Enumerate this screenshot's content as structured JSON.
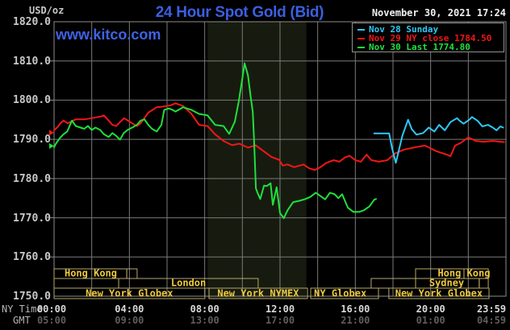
{
  "header": {
    "unit_label": "USD/oz",
    "title": "24 Hour Spot Gold (Bid)",
    "datetime": "November 30, 2021 17:24",
    "watermark": "www.kitco.com"
  },
  "legend": {
    "items": [
      {
        "label": "Nov 28 Sunday",
        "color": "#2FC8F8"
      },
      {
        "label": "Nov 29 NY close 1784.50",
        "color": "#F21717"
      },
      {
        "label": "Nov 30 Last 1774.80",
        "color": "#1FE03C"
      }
    ]
  },
  "axes": {
    "y_ticks": [
      {
        "label": "1820.0",
        "value": 1820
      },
      {
        "label": "1810.0",
        "value": 1810
      },
      {
        "label": "1800.0",
        "value": 1800
      },
      {
        "label": "1790.0",
        "value": 1790
      },
      {
        "label": "1780.0",
        "value": 1780
      },
      {
        "label": "1770.0",
        "value": 1770
      },
      {
        "label": "1760.0",
        "value": 1760
      },
      {
        "label": "1750.0",
        "value": 1750
      }
    ],
    "x_row1_name": "NY Time",
    "x_row2_name": "GMT",
    "x_row1_ticks": [
      {
        "label": "00:00",
        "hour": 0
      },
      {
        "label": "04:00",
        "hour": 4
      },
      {
        "label": "08:00",
        "hour": 8
      },
      {
        "label": "12:00",
        "hour": 12
      },
      {
        "label": "16:00",
        "hour": 16
      },
      {
        "label": "20:00",
        "hour": 20
      },
      {
        "label": "23:59",
        "hour": 24
      }
    ],
    "x_row2_ticks": [
      {
        "label": "05:00",
        "hour": 0
      },
      {
        "label": "09:00",
        "hour": 4
      },
      {
        "label": "13:00",
        "hour": 8
      },
      {
        "label": "17:00",
        "hour": 12
      },
      {
        "label": "21:00",
        "hour": 16
      },
      {
        "label": "01:00",
        "hour": 20
      },
      {
        "label": "04:59",
        "hour": 24
      }
    ]
  },
  "sessions": {
    "rows": [
      {
        "boxes": [
          {
            "start": 0,
            "end": 3.86
          },
          {
            "start": 3.86,
            "end": 4.41
          },
          {
            "start": 19.2,
            "end": 21.77
          },
          {
            "start": 21.77,
            "end": 23.06
          }
        ],
        "labels": [
          {
            "text": "Hong Kong",
            "center": 1.95
          },
          {
            "text": "Hong Kong",
            "center": 21.77
          }
        ]
      },
      {
        "boxes": [
          {
            "start": 0,
            "end": 3.43
          },
          {
            "start": 3.43,
            "end": 10.84
          },
          {
            "start": 16.84,
            "end": 19.2
          },
          {
            "start": 19.2,
            "end": 22.58
          },
          {
            "start": 22.58,
            "end": 23.06
          }
        ],
        "labels": [
          {
            "text": "London",
            "center": 7.14
          },
          {
            "text": "Sydney",
            "center": 20.85
          }
        ]
      },
      {
        "boxes": [
          {
            "start": 0,
            "end": 8.01
          },
          {
            "start": 8.23,
            "end": 13.46
          },
          {
            "start": 13.63,
            "end": 17.23
          },
          {
            "start": 17.78,
            "end": 23.1
          }
        ],
        "labels": [
          {
            "text": "New York Globex",
            "center": 4.0
          },
          {
            "text": "New York NYMEX",
            "center": 10.84
          },
          {
            "text": "NY Globex",
            "center": 15.2
          },
          {
            "text": "New York Globex",
            "center": 20.44
          }
        ]
      }
    ]
  },
  "colors": {
    "background": "#000000",
    "title": "#3B5FE0",
    "watermark": "#3E63E6",
    "datetime": "#F0F0F0",
    "grid": "#7A7A7A",
    "border": "#8C8C8C",
    "band": "#171B0F",
    "session_border": "#B3A769",
    "session_text": "#EDC93F",
    "legend_border": "#909090"
  },
  "chart_data": {
    "type": "line",
    "title": "24 Hour Spot Gold (Bid)",
    "xlabel": "NY Time / GMT",
    "ylabel": "USD/oz",
    "xlim_hours": [
      0,
      24
    ],
    "ylim": [
      1750,
      1820
    ],
    "grid": "on",
    "grid_x_step_hours": 2,
    "grid_y_step": 10,
    "legend_position": "top-right",
    "shaded_band_hours": [
      8.15,
      13.4
    ],
    "start_markers": [
      {
        "series": "Nov 29",
        "price": 1791.7,
        "color": "#F21717"
      },
      {
        "series": "Nov 30",
        "price": 1788.3,
        "color": "#1FE03C"
      }
    ],
    "series": [
      {
        "name": "Nov 29 NY close 1784.50",
        "color": "#F21717",
        "points": [
          [
            0,
            1792.3
          ],
          [
            0.2,
            1793.2
          ],
          [
            0.35,
            1794.2
          ],
          [
            0.5,
            1794.8
          ],
          [
            0.72,
            1794.1
          ],
          [
            1.15,
            1795.1
          ],
          [
            1.6,
            1795.1
          ],
          [
            2.0,
            1795.4
          ],
          [
            2.45,
            1795.8
          ],
          [
            2.65,
            1796.1
          ],
          [
            2.9,
            1794.8
          ],
          [
            3.1,
            1793.7
          ],
          [
            3.3,
            1793.4
          ],
          [
            3.5,
            1794.4
          ],
          [
            3.72,
            1795.4
          ],
          [
            4.15,
            1794.1
          ],
          [
            4.4,
            1793.4
          ],
          [
            4.6,
            1794.1
          ],
          [
            5.0,
            1796.8
          ],
          [
            5.45,
            1798.2
          ],
          [
            5.85,
            1798.4
          ],
          [
            6.2,
            1798.7
          ],
          [
            6.45,
            1799.2
          ],
          [
            6.85,
            1798.5
          ],
          [
            7.3,
            1796.5
          ],
          [
            7.7,
            1793.7
          ],
          [
            8.15,
            1793.4
          ],
          [
            8.55,
            1791.3
          ],
          [
            9.0,
            1789.6
          ],
          [
            9.45,
            1788.5
          ],
          [
            9.85,
            1788.9
          ],
          [
            10.3,
            1787.9
          ],
          [
            10.7,
            1788.5
          ],
          [
            11.15,
            1786.9
          ],
          [
            11.55,
            1785.5
          ],
          [
            11.95,
            1784.8
          ],
          [
            12.15,
            1783.3
          ],
          [
            12.4,
            1783.6
          ],
          [
            12.75,
            1782.9
          ],
          [
            13.25,
            1783.6
          ],
          [
            13.55,
            1782.6
          ],
          [
            13.85,
            1782.2
          ],
          [
            14.15,
            1782.9
          ],
          [
            14.45,
            1784.0
          ],
          [
            14.85,
            1784.7
          ],
          [
            15.15,
            1784.3
          ],
          [
            15.45,
            1785.4
          ],
          [
            15.7,
            1785.8
          ],
          [
            16.0,
            1784.7
          ],
          [
            16.3,
            1784.3
          ],
          [
            16.6,
            1786.1
          ],
          [
            16.85,
            1784.7
          ],
          [
            17.25,
            1784.3
          ],
          [
            17.7,
            1784.7
          ],
          [
            18.1,
            1786.4
          ],
          [
            18.6,
            1787.4
          ],
          [
            19.2,
            1788.0
          ],
          [
            19.7,
            1788.4
          ],
          [
            20.3,
            1787.0
          ],
          [
            20.85,
            1786.1
          ],
          [
            21.05,
            1785.7
          ],
          [
            21.3,
            1788.4
          ],
          [
            21.6,
            1789.1
          ],
          [
            22.0,
            1790.5
          ],
          [
            22.4,
            1789.6
          ],
          [
            22.8,
            1789.4
          ],
          [
            23.3,
            1789.6
          ],
          [
            23.9,
            1789.3
          ]
        ]
      },
      {
        "name": "Nov 30 Last 1774.80",
        "color": "#1FE03C",
        "points": [
          [
            0,
            1788.0
          ],
          [
            0.1,
            1788.9
          ],
          [
            0.3,
            1790.3
          ],
          [
            0.5,
            1791.3
          ],
          [
            0.7,
            1792.0
          ],
          [
            0.95,
            1794.8
          ],
          [
            1.15,
            1793.4
          ],
          [
            1.4,
            1793.0
          ],
          [
            1.6,
            1792.7
          ],
          [
            1.8,
            1793.4
          ],
          [
            2.0,
            1792.4
          ],
          [
            2.2,
            1793.0
          ],
          [
            2.45,
            1792.4
          ],
          [
            2.65,
            1791.3
          ],
          [
            2.9,
            1790.6
          ],
          [
            3.1,
            1791.6
          ],
          [
            3.3,
            1790.9
          ],
          [
            3.5,
            1789.9
          ],
          [
            3.7,
            1791.6
          ],
          [
            3.9,
            1792.4
          ],
          [
            4.15,
            1793.0
          ],
          [
            4.4,
            1793.7
          ],
          [
            4.6,
            1794.8
          ],
          [
            4.8,
            1795.1
          ],
          [
            5.0,
            1793.7
          ],
          [
            5.2,
            1792.7
          ],
          [
            5.45,
            1792.0
          ],
          [
            5.7,
            1793.7
          ],
          [
            5.85,
            1797.5
          ],
          [
            6.1,
            1797.9
          ],
          [
            6.3,
            1797.5
          ],
          [
            6.45,
            1797.1
          ],
          [
            6.85,
            1798.2
          ],
          [
            7.3,
            1797.5
          ],
          [
            7.7,
            1796.5
          ],
          [
            8.15,
            1796.1
          ],
          [
            8.55,
            1793.7
          ],
          [
            9.0,
            1793.4
          ],
          [
            9.3,
            1791.4
          ],
          [
            9.6,
            1794.5
          ],
          [
            9.8,
            1799.5
          ],
          [
            10.0,
            1805.5
          ],
          [
            10.12,
            1809.4
          ],
          [
            10.3,
            1806.3
          ],
          [
            10.45,
            1800.6
          ],
          [
            10.55,
            1797.1
          ],
          [
            10.62,
            1790.0
          ],
          [
            10.72,
            1777.5
          ],
          [
            10.82,
            1776.2
          ],
          [
            10.95,
            1774.8
          ],
          [
            11.15,
            1778.2
          ],
          [
            11.3,
            1778.1
          ],
          [
            11.5,
            1778.8
          ],
          [
            11.62,
            1773.3
          ],
          [
            11.82,
            1777.8
          ],
          [
            12.0,
            1771.2
          ],
          [
            12.2,
            1769.9
          ],
          [
            12.4,
            1771.9
          ],
          [
            12.7,
            1774.0
          ],
          [
            13.0,
            1774.3
          ],
          [
            13.3,
            1774.7
          ],
          [
            13.6,
            1775.3
          ],
          [
            13.9,
            1776.4
          ],
          [
            14.1,
            1775.7
          ],
          [
            14.4,
            1774.7
          ],
          [
            14.65,
            1776.4
          ],
          [
            14.9,
            1776.0
          ],
          [
            15.1,
            1775.0
          ],
          [
            15.3,
            1776.0
          ],
          [
            15.6,
            1772.6
          ],
          [
            15.9,
            1771.5
          ],
          [
            16.2,
            1771.5
          ],
          [
            16.45,
            1771.9
          ],
          [
            16.75,
            1772.9
          ],
          [
            17.0,
            1774.6
          ],
          [
            17.1,
            1774.8
          ]
        ]
      },
      {
        "name": "Nov 28 Sunday",
        "color": "#2FC8F8",
        "points": [
          [
            17.0,
            1791.5
          ],
          [
            17.8,
            1791.5
          ],
          [
            17.95,
            1787.8
          ],
          [
            18.15,
            1784.0
          ],
          [
            18.3,
            1787.0
          ],
          [
            18.5,
            1791.0
          ],
          [
            18.8,
            1795.0
          ],
          [
            19.0,
            1792.6
          ],
          [
            19.25,
            1791.2
          ],
          [
            19.6,
            1791.6
          ],
          [
            19.9,
            1793.0
          ],
          [
            20.2,
            1792.0
          ],
          [
            20.45,
            1793.7
          ],
          [
            20.75,
            1792.3
          ],
          [
            21.05,
            1794.4
          ],
          [
            21.4,
            1795.4
          ],
          [
            21.55,
            1794.7
          ],
          [
            21.75,
            1794.0
          ],
          [
            22.05,
            1795.0
          ],
          [
            22.2,
            1795.7
          ],
          [
            22.5,
            1794.7
          ],
          [
            22.75,
            1793.3
          ],
          [
            23.05,
            1793.7
          ],
          [
            23.3,
            1793.0
          ],
          [
            23.5,
            1792.3
          ],
          [
            23.7,
            1793.3
          ],
          [
            23.85,
            1793.0
          ]
        ]
      }
    ]
  }
}
